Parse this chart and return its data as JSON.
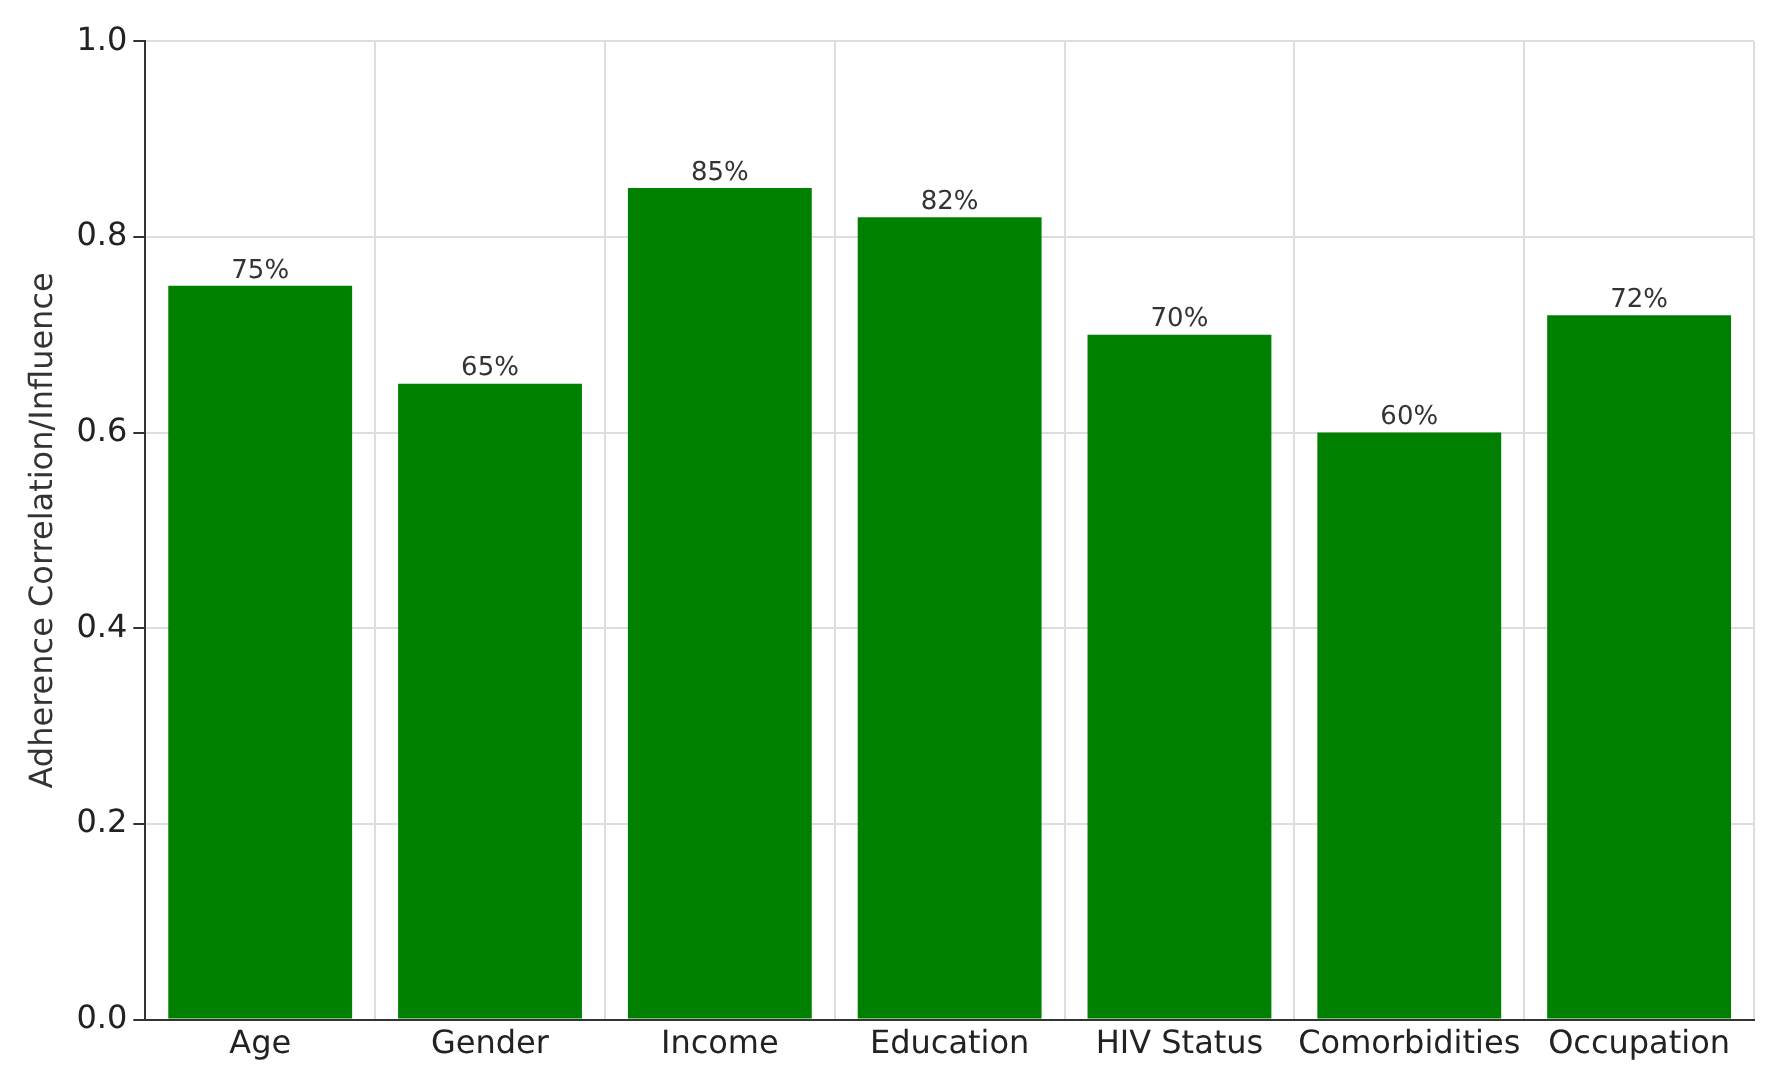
{
  "chart_data": {
    "type": "bar",
    "ylabel": "Adherence Correlation/Influence",
    "categories": [
      "Age",
      "Gender",
      "Income",
      "Education",
      "HIV Status",
      "Comorbidities",
      "Occupation"
    ],
    "values": [
      0.75,
      0.65,
      0.85,
      0.82,
      0.7,
      0.6,
      0.72
    ],
    "value_labels": [
      "75%",
      "65%",
      "85%",
      "82%",
      "70%",
      "60%",
      "72%"
    ],
    "color": "#008000",
    "ylim": [
      0,
      1.0
    ],
    "yticks": [
      {
        "value": 0,
        "label": "0.0"
      },
      {
        "value": 0.2,
        "label": "0.2"
      },
      {
        "value": 0.4,
        "label": "0.4"
      },
      {
        "value": 0.6,
        "label": "0.6"
      },
      {
        "value": 0.8,
        "label": "0.8"
      },
      {
        "value": 1.0,
        "label": "1.0"
      }
    ],
    "grid": true
  }
}
